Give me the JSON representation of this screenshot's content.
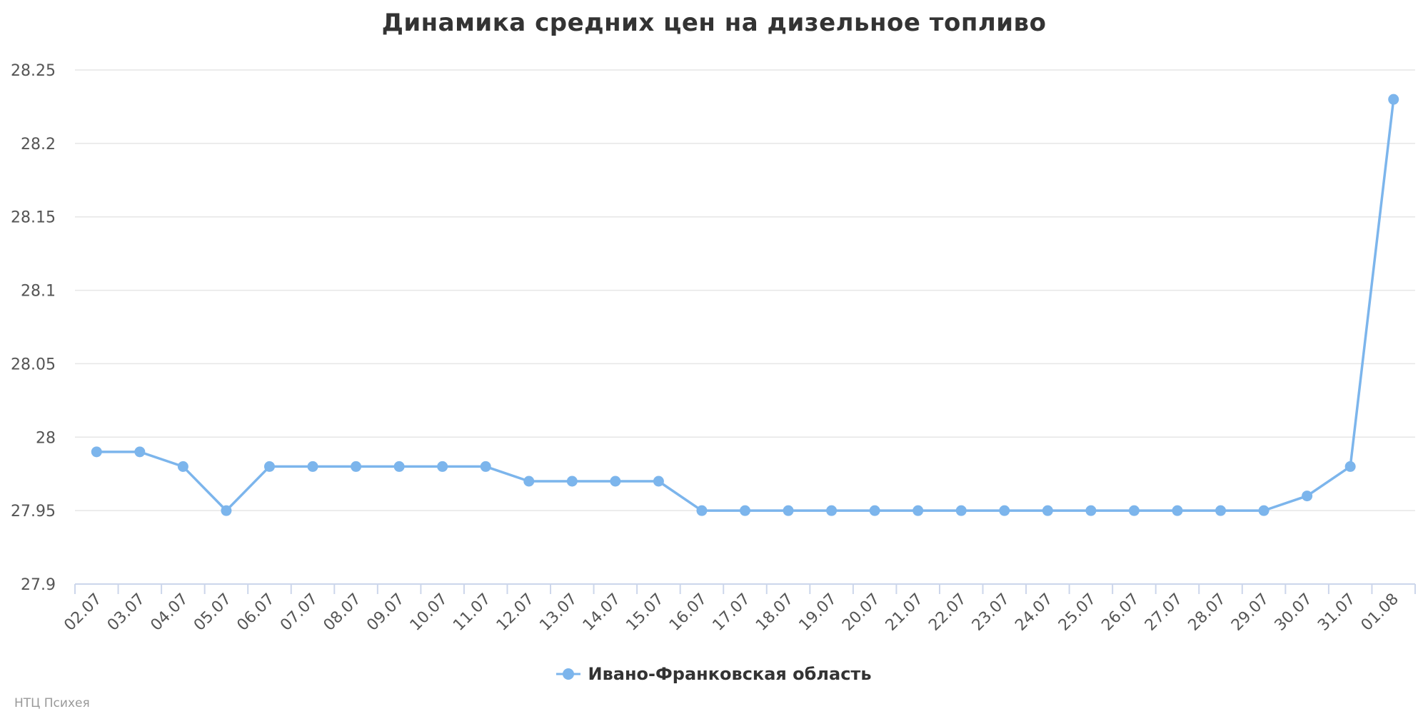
{
  "chart_data": {
    "type": "line",
    "title": "Динамика средних цен на дизельное топливо",
    "xlabel": "",
    "ylabel": "",
    "ylim": [
      27.9,
      28.25
    ],
    "yticks": [
      "27.9",
      "27.95",
      "28",
      "28.05",
      "28.1",
      "28.15",
      "28.2",
      "28.25"
    ],
    "grid": true,
    "legend_position": "bottom-center",
    "categories": [
      "02.07",
      "03.07",
      "04.07",
      "05.07",
      "06.07",
      "07.07",
      "08.07",
      "09.07",
      "10.07",
      "11.07",
      "12.07",
      "13.07",
      "14.07",
      "15.07",
      "16.07",
      "17.07",
      "18.07",
      "19.07",
      "20.07",
      "21.07",
      "22.07",
      "23.07",
      "24.07",
      "25.07",
      "26.07",
      "27.07",
      "28.07",
      "29.07",
      "30.07",
      "31.07",
      "01.08"
    ],
    "series": [
      {
        "name": "Ивано-Франковская область",
        "color": "#7cb5ec",
        "values": [
          27.99,
          27.99,
          27.98,
          27.95,
          27.98,
          27.98,
          27.98,
          27.98,
          27.98,
          27.98,
          27.97,
          27.97,
          27.97,
          27.97,
          27.95,
          27.95,
          27.95,
          27.95,
          27.95,
          27.95,
          27.95,
          27.95,
          27.95,
          27.95,
          27.95,
          27.95,
          27.95,
          27.95,
          27.96,
          27.98,
          28.23
        ]
      }
    ]
  },
  "credits": "НТЦ Психея"
}
